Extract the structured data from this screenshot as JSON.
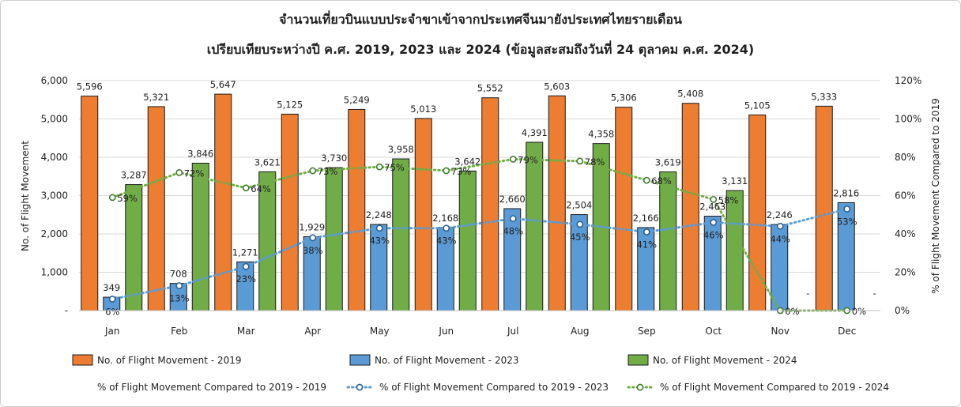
{
  "chart_data": {
    "type": "bar",
    "title": "จำนวนเที่ยวบินแบบประจำขาเข้าจากประเทศจีนมายังประเทศไทยรายเดือน",
    "subtitle": "เปรียบเทียบระหว่างปี  ค.ศ. 2019, 2023 และ 2024 (ข้อมูลสะสมถึงวันที่ 24 ตุลาคม ค.ศ. 2024)",
    "ylabel": "No. of Flight Movement",
    "y2label": "% of Flight Movement Compared to 2019",
    "ylim": [
      0,
      6000
    ],
    "y_ticks": [
      "-",
      "1,000",
      "2,000",
      "3,000",
      "4,000",
      "5,000",
      "6,000"
    ],
    "y2lim": [
      0,
      120
    ],
    "y2_ticks": [
      "0%",
      "20%",
      "40%",
      "60%",
      "80%",
      "100%",
      "120%"
    ],
    "categories": [
      "Jan",
      "Feb",
      "Mar",
      "Apr",
      "May",
      "Jun",
      "Jul",
      "Aug",
      "Sep",
      "Oct",
      "Nov",
      "Dec"
    ],
    "series": [
      {
        "name": "No. of Flight Movement - 2019",
        "color": "#ed7d31",
        "values": [
          5596,
          5321,
          5647,
          5125,
          5249,
          5013,
          5552,
          5603,
          5306,
          5408,
          5105,
          5333
        ],
        "labels": [
          "5,596",
          "5,321",
          "5,647",
          "5,125",
          "5,249",
          "5,013",
          "5,552",
          "5,603",
          "5,306",
          "5,408",
          "5,105",
          "5,333"
        ]
      },
      {
        "name": "No. of Flight Movement - 2023",
        "color": "#5b9bd5",
        "values": [
          349,
          708,
          1271,
          1929,
          2248,
          2168,
          2660,
          2504,
          2166,
          2463,
          2246,
          2816
        ],
        "labels": [
          "349",
          "708",
          "1,271",
          "1,929",
          "2,248",
          "2,168",
          "2,660",
          "2,504",
          "2,166",
          "2,463",
          "2,246",
          "2,816"
        ]
      },
      {
        "name": "No. of Flight Movement - 2024",
        "color": "#70ad47",
        "values": [
          3287,
          3846,
          3621,
          3730,
          3958,
          3642,
          4391,
          4358,
          3619,
          3131,
          0,
          0
        ],
        "labels": [
          "3,287",
          "3,846",
          "3,621",
          "3,730",
          "3,958",
          "3,642",
          "4,391",
          "4,358",
          "3,619",
          "3,131",
          "-",
          "-"
        ]
      }
    ],
    "line_series": [
      {
        "name": "% of Flight Movement Compared to 2019 - 2019",
        "values": []
      },
      {
        "name": "% of Flight Movement Compared to 2019 - 2023",
        "color": "#5b9bd5",
        "values": [
          6,
          13,
          23,
          38,
          43,
          43,
          48,
          45,
          41,
          46,
          44,
          53
        ],
        "labels": [
          "6%",
          "13%",
          "23%",
          "38%",
          "43%",
          "43%",
          "48%",
          "45%",
          "41%",
          "46%",
          "44%",
          "53%"
        ]
      },
      {
        "name": "% of Flight Movement Compared to 2019 - 2024",
        "color": "#70ad47",
        "values": [
          59,
          72,
          64,
          73,
          75,
          73,
          79,
          78,
          68,
          58,
          0,
          0
        ],
        "labels": [
          "59%",
          "72%",
          "64%",
          "73%",
          "75%",
          "73%",
          "79%",
          "78%",
          "68%",
          "58%",
          "0%",
          "0%"
        ]
      }
    ],
    "grid": true,
    "legend_position": "bottom"
  }
}
